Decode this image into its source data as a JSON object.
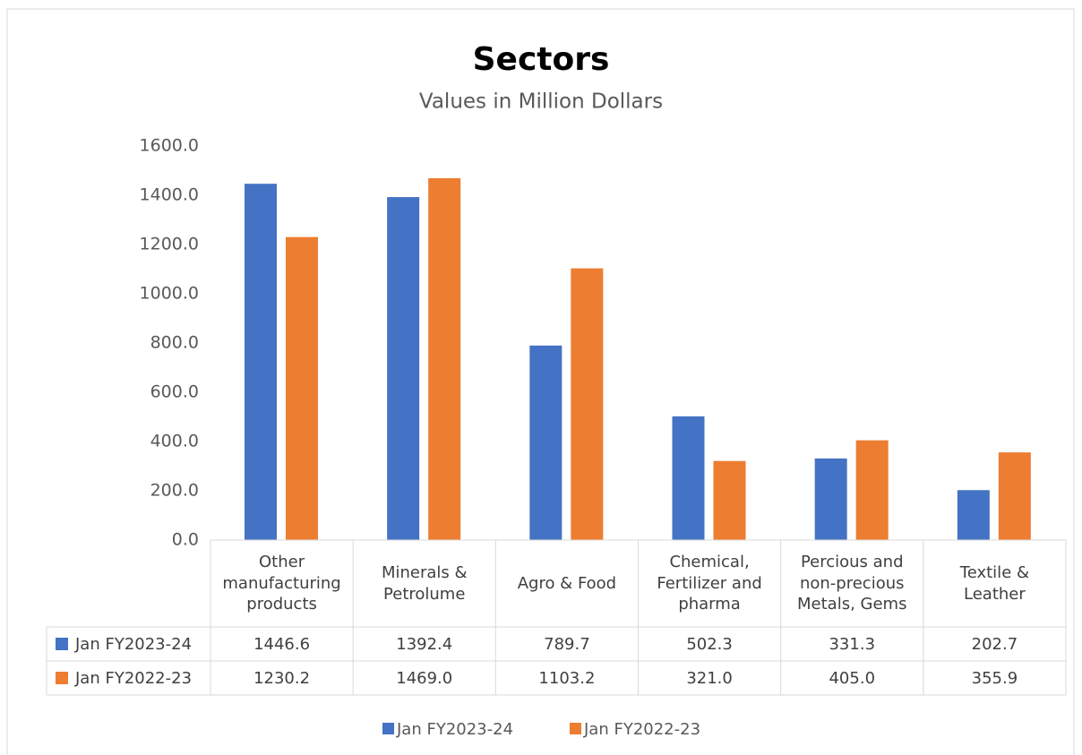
{
  "chart_data": {
    "type": "bar",
    "title": "Sectors",
    "subtitle": "Values in Million Dollars",
    "categories": [
      "Other manufacturing products",
      "Minerals & Petrolume",
      "Agro & Food",
      "Chemical, Fertilizer and pharma",
      "Percious and non-precious Metals, Gems",
      "Textile & Leather"
    ],
    "series": [
      {
        "name": "Jan FY2023-24",
        "color": "#4472c4",
        "values": [
          1446.6,
          1392.4,
          789.7,
          502.3,
          331.3,
          202.7
        ],
        "value_labels": [
          "1446.6",
          "1392.4",
          "789.7",
          "502.3",
          "331.3",
          "202.7"
        ]
      },
      {
        "name": "Jan FY2022-23",
        "color": "#ed7d31",
        "values": [
          1230.2,
          1469.0,
          1103.2,
          321.0,
          405.0,
          355.9
        ],
        "value_labels": [
          "1230.2",
          "1469.0",
          "1103.2",
          "321.0",
          "405.0",
          "355.9"
        ]
      }
    ],
    "ylim": [
      0,
      1600
    ],
    "yticks": [
      {
        "value": 0,
        "label": "0.0"
      },
      {
        "value": 200,
        "label": "200.0"
      },
      {
        "value": 400,
        "label": "400.0"
      },
      {
        "value": 600,
        "label": "600.0"
      },
      {
        "value": 800,
        "label": "800.0"
      },
      {
        "value": 1000,
        "label": "1000.0"
      },
      {
        "value": 1200,
        "label": "1200.0"
      },
      {
        "value": 1400,
        "label": "1400.0"
      },
      {
        "value": 1600,
        "label": "1600.0"
      }
    ],
    "grid": false,
    "legend": "bottom",
    "data_table": true
  }
}
